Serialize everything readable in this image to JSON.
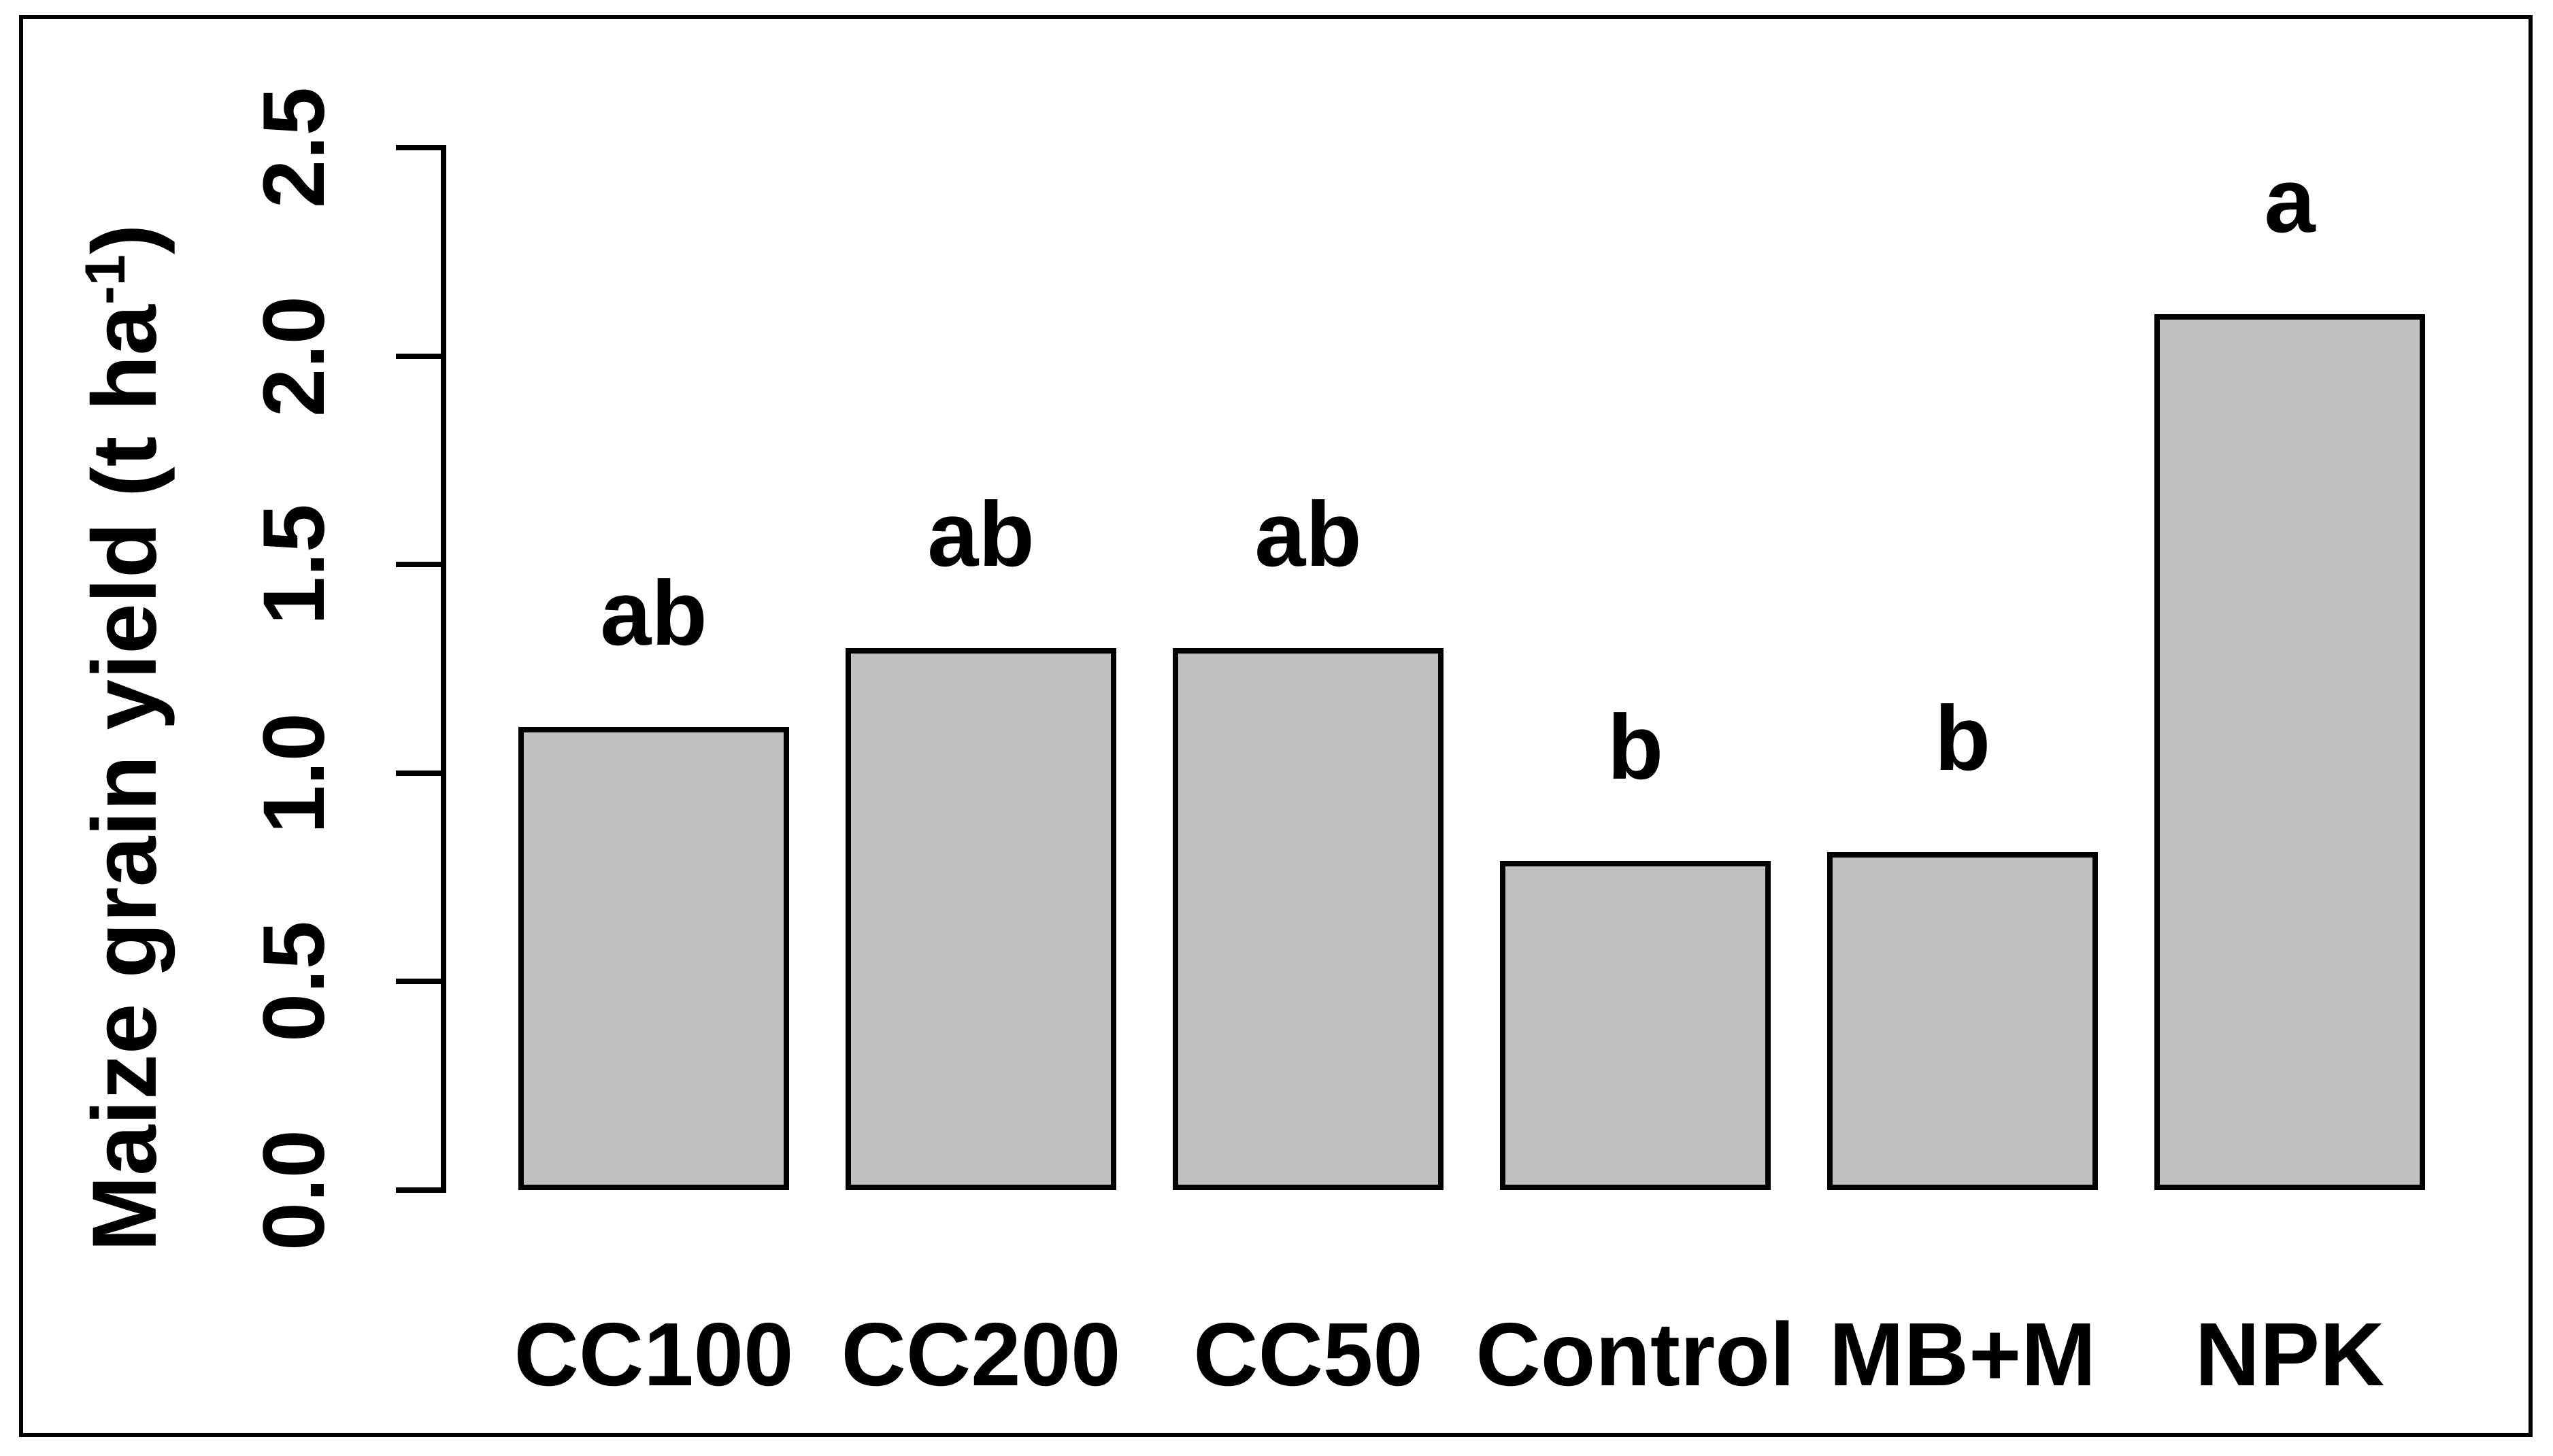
{
  "figure": {
    "background": "#ffffff",
    "frame_color": "#000000",
    "text_color": "#000000"
  },
  "chart_data": {
    "type": "bar",
    "title": "",
    "categories": [
      "CC100",
      "CC200",
      "CC50",
      "Control",
      "MB+M",
      "NPK"
    ],
    "values": [
      1.11,
      1.3,
      1.3,
      0.79,
      0.81,
      2.1
    ],
    "significance_letters": [
      "ab",
      "ab",
      "ab",
      "b",
      "b",
      "a"
    ],
    "xlabel": "",
    "ylabel": "Maize grain yield (t ha-1)",
    "ylabel_parts": {
      "pre": "Maize grain yield (t ha",
      "sup": "-1",
      "post": ")"
    },
    "ylim": [
      0,
      2.5
    ],
    "yticks": [
      0,
      0.5,
      1,
      1.5,
      2,
      2.5
    ],
    "ytick_labels": [
      "0.0",
      "0.5",
      "1.0",
      "1.5",
      "2.0",
      "2.5"
    ],
    "grid": false,
    "legend": "none",
    "bar_fill": "#c0c0c0",
    "bar_border": "#000000"
  }
}
